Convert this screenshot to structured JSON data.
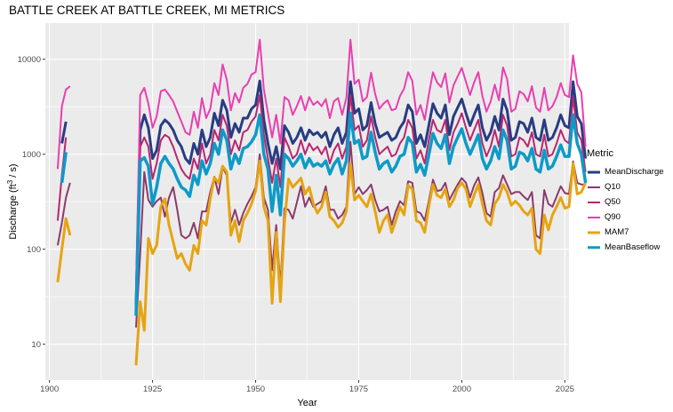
{
  "chart_data": {
    "type": "line",
    "title": "BATTLE CREEK AT BATTLE CREEK, MI  METRICS",
    "xlabel": "Year",
    "ylabel_prefix": "Discharge (ft",
    "ylabel_sup": "3",
    "ylabel_suffix": " / s)",
    "scale_y": "log10",
    "xlim": [
      1899,
      2026
    ],
    "ylim": [
      4.2,
      24000
    ],
    "x_ticks": [
      1900,
      1925,
      1950,
      1975,
      2000,
      2025
    ],
    "x_tick_labels": [
      "1900",
      "1925",
      "1950",
      "1975",
      "2000",
      "2025"
    ],
    "y_ticks": [
      10,
      100,
      1000,
      10000
    ],
    "y_tick_labels": [
      "10",
      "100",
      "1000",
      "10000"
    ],
    "grid": true,
    "legend_position": "right",
    "legend_title": "Metric",
    "series": [
      {
        "name": "MeanDischarge",
        "color": "#283c82",
        "width": 3,
        "segments": [
          {
            "start": 1903,
            "values": [
              1300,
              2200
            ]
          },
          {
            "start": 1921,
            "values": [
              25,
              1800,
              2600,
              1900,
              900,
              1100,
              2000,
              2300,
              2100,
              1800,
              1400,
              1200,
              900,
              800,
              1300,
              1000,
              1800,
              1200,
              1500,
              2700,
              2000,
              3700,
              2900,
              1500,
              2100,
              1700,
              2400,
              2400,
              3000,
              3300,
              5900,
              2300,
              1300,
              800,
              1200,
              700,
              2000,
              1700,
              1300,
              1500,
              1900,
              1400,
              1800,
              1600,
              1700,
              1500,
              1700,
              1200,
              1600,
              1900,
              1300,
              1700,
              5800,
              2700,
              3000,
              1800,
              2000,
              3500,
              2100,
              1500,
              1600,
              1700,
              1400,
              1500,
              1900,
              2200,
              3300,
              2800,
              1300,
              1600,
              1200,
              2000,
              3400,
              2700,
              2400,
              3300,
              1600,
              2500,
              3100,
              3800,
              2700,
              2000,
              2600,
              3300,
              1900,
              1400,
              1700,
              2500,
              1800,
              3800,
              2900,
              1400,
              1500,
              2200,
              2100,
              1700,
              2400,
              1500,
              1400,
              2300,
              1400,
              1500,
              1900,
              2600,
              2000,
              1900,
              5800,
              2500,
              2100,
              900
            ]
          }
        ]
      },
      {
        "name": "Q10",
        "color": "#8b3a6b",
        "width": 2,
        "segments": [
          {
            "start": 1902,
            "values": [
              110,
              190,
              350,
              500
            ]
          },
          {
            "start": 1921,
            "values": [
              15,
              90,
              650,
              330,
              280,
              320,
              350,
              220,
              350,
              450,
              260,
              140,
              130,
              140,
              190,
              130,
              250,
              250,
              400,
              580,
              380,
              730,
              600,
              190,
              260,
              180,
              240,
              300,
              360,
              450,
              1000,
              350,
              260,
              60,
              180,
              40,
              270,
              260,
              210,
              310,
              460,
              280,
              350,
              280,
              300,
              320,
              460,
              260,
              260,
              210,
              230,
              280,
              1350,
              380,
              450,
              380,
              420,
              480,
              330,
              250,
              260,
              280,
              180,
              250,
              320,
              290,
              520,
              500,
              250,
              240,
              200,
              320,
              540,
              410,
              420,
              500,
              330,
              400,
              480,
              560,
              500,
              350,
              470,
              570,
              390,
              240,
              220,
              400,
              440,
              600,
              480,
              380,
              400,
              400,
              360,
              330,
              400,
              140,
              130,
              420,
              300,
              280,
              360,
              460,
              390,
              380,
              840,
              500,
              480,
              480
            ]
          }
        ]
      },
      {
        "name": "Q50",
        "color": "#b8266f",
        "width": 2,
        "segments": [
          {
            "start": 1902,
            "values": [
              200,
              600,
              1500
            ]
          },
          {
            "start": 1921,
            "values": [
              20,
              1200,
              1500,
              1200,
              550,
              800,
              1400,
              1600,
              1500,
              1200,
              900,
              700,
              600,
              550,
              900,
              700,
              1300,
              800,
              1000,
              1800,
              1400,
              2600,
              2000,
              1000,
              1400,
              1100,
              1700,
              1800,
              2200,
              2500,
              4200,
              1600,
              900,
              500,
              900,
              450,
              1500,
              1200,
              900,
              1000,
              1400,
              1000,
              1300,
              1100,
              1200,
              1000,
              1200,
              800,
              1100,
              1300,
              900,
              1200,
              4200,
              1800,
              2000,
              1200,
              1400,
              2500,
              1500,
              1000,
              1100,
              1200,
              950,
              1000,
              1300,
              1500,
              2300,
              1900,
              900,
              1100,
              800,
              1400,
              2300,
              1800,
              1700,
              2300,
              1100,
              1700,
              2100,
              2700,
              1900,
              1400,
              1800,
              2300,
              1300,
              950,
              1200,
              1800,
              1200,
              2600,
              2000,
              950,
              1000,
              1500,
              1400,
              1200,
              1700,
              1000,
              950,
              1600,
              950,
              1000,
              1300,
              1800,
              1400,
              1300,
              4000,
              1700,
              1400,
              650
            ]
          }
        ]
      },
      {
        "name": "Q90",
        "color": "#e83fb0",
        "width": 2,
        "segments": [
          {
            "start": 1902,
            "values": [
              700,
              3200,
              4800,
              5200
            ]
          },
          {
            "start": 1921,
            "values": [
              40,
              4200,
              5000,
              3400,
              1900,
              2500,
              4600,
              4800,
              4200,
              3600,
              2800,
              2200,
              1700,
              1600,
              2800,
              1900,
              3900,
              2400,
              3000,
              5600,
              4200,
              8800,
              6100,
              2900,
              4400,
              3500,
              5000,
              5500,
              6900,
              7300,
              16000,
              4800,
              2700,
              1500,
              2600,
              1300,
              4000,
              3700,
              2600,
              3200,
              4100,
              2900,
              4000,
              3300,
              3600,
              3200,
              3800,
              2400,
              3600,
              3900,
              2600,
              3900,
              16000,
              5500,
              6100,
              3600,
              4000,
              7200,
              4300,
              3000,
              3400,
              3700,
              2900,
              3000,
              4100,
              4900,
              7300,
              5900,
              2600,
              3300,
              2300,
              4200,
              7300,
              5700,
              5100,
              7100,
              3500,
              5300,
              6600,
              8100,
              5800,
              4200,
              5700,
              7300,
              4100,
              2800,
              3600,
              5400,
              3700,
              8200,
              6200,
              2800,
              3000,
              4600,
              4300,
              3600,
              5200,
              3100,
              2800,
              5000,
              2900,
              3200,
              4000,
              5600,
              4200,
              4000,
              11000,
              5500,
              4500,
              1200
            ]
          }
        ]
      },
      {
        "name": "MAM7",
        "color": "#e5a412",
        "width": 3,
        "segments": [
          {
            "start": 1902,
            "values": [
              45,
              100,
              210,
              140
            ]
          },
          {
            "start": 1921,
            "values": [
              6,
              28,
              14,
              130,
              90,
              110,
              280,
              340,
              180,
              120,
              80,
              90,
              70,
              60,
              110,
              90,
              200,
              180,
              340,
              570,
              500,
              750,
              650,
              140,
              200,
              120,
              200,
              240,
              300,
              410,
              850,
              280,
              200,
              27,
              150,
              28,
              190,
              550,
              450,
              500,
              560,
              380,
              450,
              300,
              240,
              280,
              400,
              220,
              200,
              170,
              190,
              250,
              800,
              330,
              370,
              320,
              280,
              380,
              250,
              150,
              200,
              230,
              150,
              200,
              280,
              230,
              470,
              430,
              200,
              190,
              150,
              280,
              480,
              370,
              350,
              430,
              280,
              330,
              440,
              500,
              430,
              280,
              370,
              480,
              300,
              200,
              180,
              300,
              350,
              480,
              400,
              290,
              320,
              290,
              250,
              230,
              270,
              100,
              90,
              230,
              160,
              230,
              280,
              350,
              270,
              280,
              800,
              380,
              400,
              500
            ]
          }
        ]
      },
      {
        "name": "MeanBaseflow",
        "color": "#0d9ac8",
        "width": 3.5,
        "segments": [
          {
            "start": 1903,
            "values": [
              500,
              1050
            ]
          },
          {
            "start": 1921,
            "values": [
              20,
              850,
              920,
              750,
              300,
              450,
              800,
              950,
              800,
              700,
              550,
              450,
              420,
              360,
              600,
              480,
              850,
              620,
              800,
              1300,
              1000,
              1800,
              1400,
              700,
              1000,
              800,
              1150,
              1200,
              1350,
              1600,
              2600,
              1000,
              700,
              250,
              600,
              230,
              1000,
              900,
              750,
              850,
              1000,
              720,
              900,
              750,
              800,
              750,
              850,
              620,
              780,
              900,
              620,
              850,
              2700,
              1300,
              1400,
              900,
              950,
              1700,
              1050,
              700,
              800,
              850,
              650,
              750,
              950,
              1000,
              1500,
              1300,
              650,
              780,
              600,
              980,
              1650,
              1300,
              1150,
              1600,
              800,
              1200,
              1500,
              1850,
              1300,
              1000,
              1250,
              1600,
              900,
              700,
              850,
              1200,
              900,
              1800,
              1400,
              700,
              750,
              1050,
              1000,
              850,
              1150,
              700,
              650,
              1100,
              700,
              750,
              950,
              1250,
              950,
              950,
              2600,
              1300,
              1000,
              500
            ]
          }
        ]
      }
    ]
  }
}
